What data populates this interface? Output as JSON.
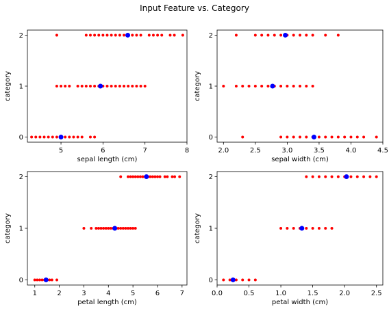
{
  "figure": {
    "title": "Input Feature vs. Category"
  },
  "chart_data": [
    {
      "type": "scatter",
      "title": "",
      "xlabel": "sepal length (cm)",
      "ylabel": "category",
      "xticks": [
        "5",
        "6",
        "7",
        "8"
      ],
      "yticks": [
        "0",
        "1",
        "2"
      ],
      "xlim": [
        4.2,
        8.0
      ],
      "ylim": [
        -0.1,
        2.1
      ],
      "grid": false,
      "series": [
        {
          "color": "#ff0000",
          "marker_radius": 2,
          "points": [
            [
              4.3,
              0
            ],
            [
              4.4,
              0
            ],
            [
              4.5,
              0
            ],
            [
              4.6,
              0
            ],
            [
              4.7,
              0
            ],
            [
              4.8,
              0
            ],
            [
              4.9,
              0
            ],
            [
              5.0,
              0
            ],
            [
              5.1,
              0
            ],
            [
              5.2,
              0
            ],
            [
              5.3,
              0
            ],
            [
              5.4,
              0
            ],
            [
              5.5,
              0
            ],
            [
              5.7,
              0
            ],
            [
              5.8,
              0
            ],
            [
              4.9,
              1
            ],
            [
              5.0,
              1
            ],
            [
              5.1,
              1
            ],
            [
              5.2,
              1
            ],
            [
              5.4,
              1
            ],
            [
              5.5,
              1
            ],
            [
              5.6,
              1
            ],
            [
              5.7,
              1
            ],
            [
              5.8,
              1
            ],
            [
              5.9,
              1
            ],
            [
              6.0,
              1
            ],
            [
              6.1,
              1
            ],
            [
              6.2,
              1
            ],
            [
              6.3,
              1
            ],
            [
              6.4,
              1
            ],
            [
              6.5,
              1
            ],
            [
              6.6,
              1
            ],
            [
              6.7,
              1
            ],
            [
              6.8,
              1
            ],
            [
              6.9,
              1
            ],
            [
              7.0,
              1
            ],
            [
              4.9,
              2
            ],
            [
              5.6,
              2
            ],
            [
              5.7,
              2
            ],
            [
              5.8,
              2
            ],
            [
              5.9,
              2
            ],
            [
              6.0,
              2
            ],
            [
              6.1,
              2
            ],
            [
              6.2,
              2
            ],
            [
              6.3,
              2
            ],
            [
              6.4,
              2
            ],
            [
              6.5,
              2
            ],
            [
              6.7,
              2
            ],
            [
              6.8,
              2
            ],
            [
              6.9,
              2
            ],
            [
              7.1,
              2
            ],
            [
              7.2,
              2
            ],
            [
              7.3,
              2
            ],
            [
              7.4,
              2
            ],
            [
              7.6,
              2
            ],
            [
              7.7,
              2
            ],
            [
              7.9,
              2
            ]
          ]
        },
        {
          "color": "#0000ff",
          "marker_radius": 3.5,
          "points": [
            [
              5.0,
              0
            ],
            [
              5.94,
              1
            ],
            [
              6.59,
              2
            ]
          ]
        }
      ]
    },
    {
      "type": "scatter",
      "title": "",
      "xlabel": "sepal width (cm)",
      "ylabel": "category",
      "xticks": [
        "2.0",
        "2.5",
        "3.0",
        "3.5",
        "4.0",
        "4.5"
      ],
      "yticks": [
        "0",
        "1",
        "2"
      ],
      "xlim": [
        1.9,
        4.5
      ],
      "ylim": [
        -0.1,
        2.1
      ],
      "grid": false,
      "series": [
        {
          "color": "#ff0000",
          "marker_radius": 2,
          "points": [
            [
              2.3,
              0
            ],
            [
              2.9,
              0
            ],
            [
              3.0,
              0
            ],
            [
              3.1,
              0
            ],
            [
              3.2,
              0
            ],
            [
              3.3,
              0
            ],
            [
              3.4,
              0
            ],
            [
              3.5,
              0
            ],
            [
              3.6,
              0
            ],
            [
              3.7,
              0
            ],
            [
              3.8,
              0
            ],
            [
              3.9,
              0
            ],
            [
              4.0,
              0
            ],
            [
              4.1,
              0
            ],
            [
              4.2,
              0
            ],
            [
              4.4,
              0
            ],
            [
              2.0,
              1
            ],
            [
              2.2,
              1
            ],
            [
              2.3,
              1
            ],
            [
              2.4,
              1
            ],
            [
              2.5,
              1
            ],
            [
              2.6,
              1
            ],
            [
              2.7,
              1
            ],
            [
              2.8,
              1
            ],
            [
              2.9,
              1
            ],
            [
              3.0,
              1
            ],
            [
              3.1,
              1
            ],
            [
              3.2,
              1
            ],
            [
              3.3,
              1
            ],
            [
              3.4,
              1
            ],
            [
              2.2,
              2
            ],
            [
              2.5,
              2
            ],
            [
              2.6,
              2
            ],
            [
              2.7,
              2
            ],
            [
              2.8,
              2
            ],
            [
              2.9,
              2
            ],
            [
              3.0,
              2
            ],
            [
              3.1,
              2
            ],
            [
              3.2,
              2
            ],
            [
              3.3,
              2
            ],
            [
              3.4,
              2
            ],
            [
              3.6,
              2
            ],
            [
              3.8,
              2
            ]
          ]
        },
        {
          "color": "#0000ff",
          "marker_radius": 3.5,
          "points": [
            [
              3.42,
              0
            ],
            [
              2.77,
              1
            ],
            [
              2.97,
              2
            ]
          ]
        }
      ]
    },
    {
      "type": "scatter",
      "title": "",
      "xlabel": "petal length (cm)",
      "ylabel": "category",
      "xticks": [
        "1",
        "2",
        "3",
        "4",
        "5",
        "6",
        "7"
      ],
      "yticks": [
        "0",
        "1",
        "2"
      ],
      "xlim": [
        0.7,
        7.2
      ],
      "ylim": [
        -0.1,
        2.1
      ],
      "grid": false,
      "series": [
        {
          "color": "#ff0000",
          "marker_radius": 2,
          "points": [
            [
              1.0,
              0
            ],
            [
              1.1,
              0
            ],
            [
              1.2,
              0
            ],
            [
              1.3,
              0
            ],
            [
              1.4,
              0
            ],
            [
              1.5,
              0
            ],
            [
              1.6,
              0
            ],
            [
              1.7,
              0
            ],
            [
              1.9,
              0
            ],
            [
              3.0,
              1
            ],
            [
              3.3,
              1
            ],
            [
              3.5,
              1
            ],
            [
              3.6,
              1
            ],
            [
              3.7,
              1
            ],
            [
              3.8,
              1
            ],
            [
              3.9,
              1
            ],
            [
              4.0,
              1
            ],
            [
              4.1,
              1
            ],
            [
              4.2,
              1
            ],
            [
              4.3,
              1
            ],
            [
              4.4,
              1
            ],
            [
              4.5,
              1
            ],
            [
              4.6,
              1
            ],
            [
              4.7,
              1
            ],
            [
              4.8,
              1
            ],
            [
              4.9,
              1
            ],
            [
              5.0,
              1
            ],
            [
              5.1,
              1
            ],
            [
              4.5,
              2
            ],
            [
              4.8,
              2
            ],
            [
              4.9,
              2
            ],
            [
              5.0,
              2
            ],
            [
              5.1,
              2
            ],
            [
              5.2,
              2
            ],
            [
              5.3,
              2
            ],
            [
              5.4,
              2
            ],
            [
              5.5,
              2
            ],
            [
              5.6,
              2
            ],
            [
              5.7,
              2
            ],
            [
              5.8,
              2
            ],
            [
              5.9,
              2
            ],
            [
              6.0,
              2
            ],
            [
              6.1,
              2
            ],
            [
              6.3,
              2
            ],
            [
              6.4,
              2
            ],
            [
              6.6,
              2
            ],
            [
              6.7,
              2
            ],
            [
              6.9,
              2
            ]
          ]
        },
        {
          "color": "#0000ff",
          "marker_radius": 3.5,
          "points": [
            [
              1.46,
              0
            ],
            [
              4.26,
              1
            ],
            [
              5.55,
              2
            ]
          ]
        }
      ]
    },
    {
      "type": "scatter",
      "title": "",
      "xlabel": "petal width (cm)",
      "ylabel": "category",
      "xticks": [
        "0.0",
        "0.5",
        "1.0",
        "1.5",
        "2.0",
        "2.5"
      ],
      "yticks": [
        "0",
        "1",
        "2"
      ],
      "xlim": [
        0.0,
        2.6
      ],
      "ylim": [
        -0.1,
        2.1
      ],
      "grid": false,
      "series": [
        {
          "color": "#ff0000",
          "marker_radius": 2,
          "points": [
            [
              0.1,
              0
            ],
            [
              0.2,
              0
            ],
            [
              0.3,
              0
            ],
            [
              0.4,
              0
            ],
            [
              0.5,
              0
            ],
            [
              0.6,
              0
            ],
            [
              1.0,
              1
            ],
            [
              1.1,
              1
            ],
            [
              1.2,
              1
            ],
            [
              1.3,
              1
            ],
            [
              1.4,
              1
            ],
            [
              1.5,
              1
            ],
            [
              1.6,
              1
            ],
            [
              1.7,
              1
            ],
            [
              1.8,
              1
            ],
            [
              1.4,
              2
            ],
            [
              1.5,
              2
            ],
            [
              1.6,
              2
            ],
            [
              1.7,
              2
            ],
            [
              1.8,
              2
            ],
            [
              1.9,
              2
            ],
            [
              2.0,
              2
            ],
            [
              2.1,
              2
            ],
            [
              2.2,
              2
            ],
            [
              2.3,
              2
            ],
            [
              2.4,
              2
            ],
            [
              2.5,
              2
            ]
          ]
        },
        {
          "color": "#0000ff",
          "marker_radius": 3.5,
          "points": [
            [
              0.25,
              0
            ],
            [
              1.33,
              1
            ],
            [
              2.03,
              2
            ]
          ]
        }
      ]
    }
  ]
}
